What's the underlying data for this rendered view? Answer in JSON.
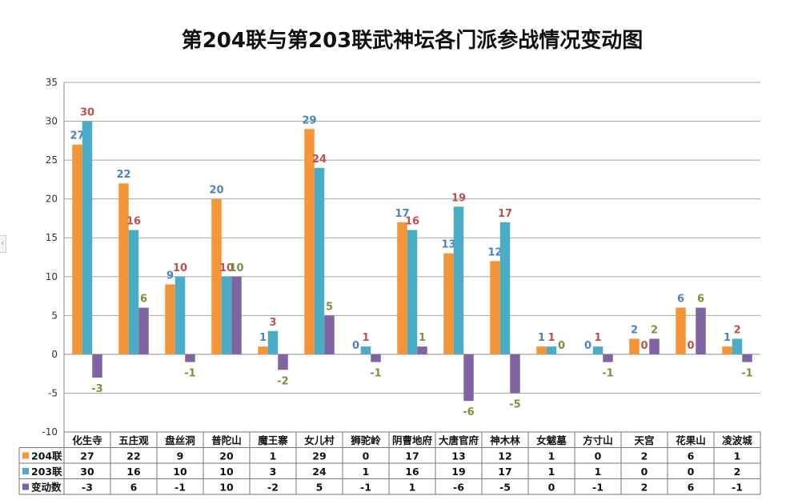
{
  "chart_data": {
    "type": "bar",
    "title": "第204联与第203联武神坛各门派参战情况变动图",
    "categories": [
      "化生寺",
      "五庄观",
      "盘丝洞",
      "普陀山",
      "魔王寨",
      "女儿村",
      "狮驼岭",
      "阴曹地府",
      "大唐官府",
      "神木林",
      "女魃墓",
      "方寸山",
      "天宫",
      "花果山",
      "凌波城"
    ],
    "series": [
      {
        "name": "204联",
        "color": "#F39538",
        "label_color": "#4F81BD",
        "values": [
          27,
          22,
          9,
          20,
          1,
          29,
          0,
          17,
          13,
          12,
          1,
          0,
          2,
          6,
          1
        ]
      },
      {
        "name": "203联",
        "color": "#4BACC6",
        "label_color": "#C0504D",
        "values": [
          30,
          16,
          10,
          10,
          3,
          24,
          1,
          16,
          19,
          17,
          1,
          1,
          0,
          0,
          2
        ]
      },
      {
        "name": "变动数",
        "color": "#8064A2",
        "label_color": "#77933C",
        "values": [
          -3,
          6,
          -1,
          10,
          -2,
          5,
          -1,
          1,
          -6,
          -5,
          0,
          -1,
          2,
          6,
          -1
        ]
      }
    ],
    "ylim": [
      -10,
      35
    ],
    "yticks": [
      -10,
      -5,
      0,
      5,
      10,
      15,
      20,
      25,
      30,
      35
    ],
    "grid": true,
    "legend": "data-table",
    "data_table": true
  },
  "side_tab_glyph": "‹"
}
